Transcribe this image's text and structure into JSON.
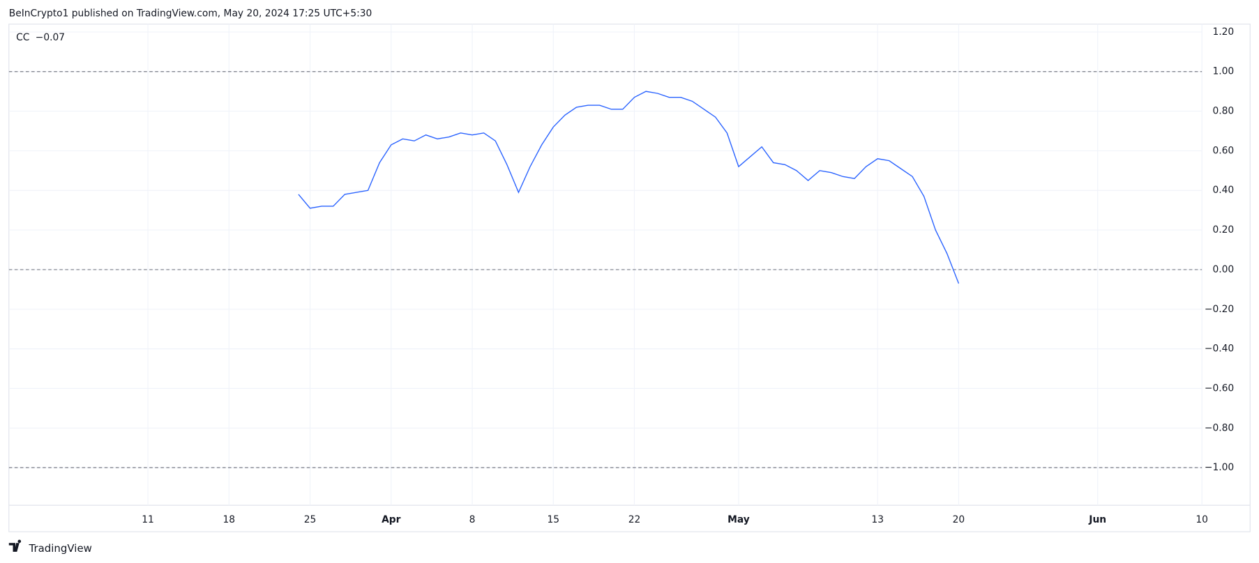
{
  "header": "BeInCrypto1 published on TradingView.com, May 20, 2024 17:25 UTC+5:30",
  "footer": "TradingView",
  "chart_data": {
    "type": "line",
    "series": [
      {
        "name": "CC",
        "color": "#2962ff",
        "last_label": "−0.07",
        "values": [
          0.38,
          0.31,
          0.32,
          0.32,
          0.38,
          0.39,
          0.4,
          0.54,
          0.63,
          0.66,
          0.65,
          0.68,
          0.66,
          0.67,
          0.69,
          0.68,
          0.69,
          0.65,
          0.53,
          0.39,
          0.52,
          0.63,
          0.72,
          0.78,
          0.82,
          0.83,
          0.83,
          0.81,
          0.81,
          0.87,
          0.9,
          0.89,
          0.87,
          0.87,
          0.85,
          0.81,
          0.77,
          0.69,
          0.52,
          0.57,
          0.62,
          0.54,
          0.53,
          0.5,
          0.45,
          0.5,
          0.49,
          0.47,
          0.46,
          0.52,
          0.56,
          0.55,
          0.51,
          0.47,
          0.37,
          0.2,
          0.08,
          -0.07
        ]
      }
    ],
    "x": [
      "2024-03-24",
      "2024-03-25",
      "2024-03-26",
      "2024-03-27",
      "2024-03-28",
      "2024-03-29",
      "2024-03-30",
      "2024-03-31",
      "2024-04-01",
      "2024-04-02",
      "2024-04-03",
      "2024-04-04",
      "2024-04-05",
      "2024-04-06",
      "2024-04-07",
      "2024-04-08",
      "2024-04-09",
      "2024-04-10",
      "2024-04-11",
      "2024-04-12",
      "2024-04-13",
      "2024-04-14",
      "2024-04-15",
      "2024-04-16",
      "2024-04-17",
      "2024-04-18",
      "2024-04-19",
      "2024-04-20",
      "2024-04-21",
      "2024-04-22",
      "2024-04-23",
      "2024-04-24",
      "2024-04-25",
      "2024-04-26",
      "2024-04-27",
      "2024-04-28",
      "2024-04-29",
      "2024-04-30",
      "2024-05-01",
      "2024-05-02",
      "2024-05-03",
      "2024-05-04",
      "2024-05-05",
      "2024-05-06",
      "2024-05-07",
      "2024-05-08",
      "2024-05-09",
      "2024-05-10",
      "2024-05-11",
      "2024-05-12",
      "2024-05-13",
      "2024-05-14",
      "2024-05-15",
      "2024-05-16",
      "2024-05-17",
      "2024-05-18",
      "2024-05-19",
      "2024-05-20"
    ],
    "xlim": [
      "2024-02-28",
      "2024-06-10"
    ],
    "xticks": [
      {
        "value": "2024-03-11",
        "label": "11"
      },
      {
        "value": "2024-03-18",
        "label": "18"
      },
      {
        "value": "2024-03-25",
        "label": "25"
      },
      {
        "value": "2024-04-01",
        "label": "Apr"
      },
      {
        "value": "2024-04-08",
        "label": "8"
      },
      {
        "value": "2024-04-15",
        "label": "15"
      },
      {
        "value": "2024-04-22",
        "label": "22"
      },
      {
        "value": "2024-05-01",
        "label": "May"
      },
      {
        "value": "2024-05-13",
        "label": "13"
      },
      {
        "value": "2024-05-20",
        "label": "20"
      },
      {
        "value": "2024-06-01",
        "label": "Jun"
      },
      {
        "value": "2024-06-10",
        "label": "10"
      }
    ],
    "ylim": [
      -1.19,
      1.24
    ],
    "yticks": [
      {
        "value": 1.2,
        "label": "1.20"
      },
      {
        "value": 1,
        "label": "1.00"
      },
      {
        "value": 0.8,
        "label": "0.80"
      },
      {
        "value": 0.6,
        "label": "0.60"
      },
      {
        "value": 0.4,
        "label": "0.40"
      },
      {
        "value": 0.2,
        "label": "0.20"
      },
      {
        "value": 0,
        "label": "0.00"
      },
      {
        "value": -0.2,
        "label": "−0.20"
      },
      {
        "value": -0.4,
        "label": "−0.40"
      },
      {
        "value": -0.6,
        "label": "−0.60"
      },
      {
        "value": -0.8,
        "label": "−0.80"
      },
      {
        "value": -1,
        "label": "−1.00"
      }
    ],
    "hlines": [
      1,
      0,
      -1
    ],
    "grid": true
  }
}
